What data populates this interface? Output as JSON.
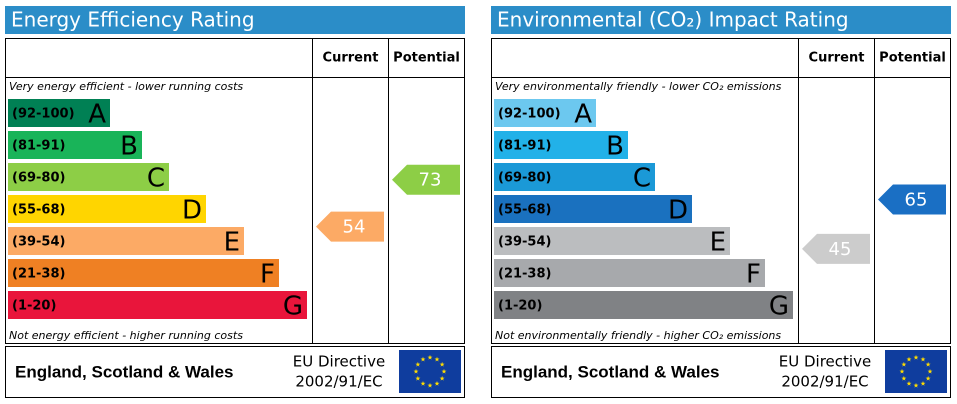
{
  "chart_data": [
    {
      "type": "epc",
      "title": "Energy Efficiency Rating",
      "columns": [
        "Current",
        "Potential"
      ],
      "top_note": "Very energy efficient - lower running costs",
      "bottom_note": "Not energy efficient - higher running costs",
      "bands": [
        {
          "range": "(92-100)",
          "letter": "A",
          "color": "#008054"
        },
        {
          "range": "(81-91)",
          "letter": "B",
          "color": "#19b459"
        },
        {
          "range": "(69-80)",
          "letter": "C",
          "color": "#8dce46"
        },
        {
          "range": "(55-68)",
          "letter": "D",
          "color": "#ffd500"
        },
        {
          "range": "(39-54)",
          "letter": "E",
          "color": "#fcaa65"
        },
        {
          "range": "(21-38)",
          "letter": "F",
          "color": "#ef8023"
        },
        {
          "range": "(1-20)",
          "letter": "G",
          "color": "#e9153b"
        }
      ],
      "current": {
        "value": 54,
        "color": "#fcaa65"
      },
      "potential": {
        "value": 73,
        "color": "#8dce46"
      },
      "footer": {
        "region": "England, Scotland & Wales",
        "directive": [
          "EU Directive",
          "2002/91/EC"
        ]
      }
    },
    {
      "type": "epc",
      "title": "Environmental (CO₂) Impact Rating",
      "columns": [
        "Current",
        "Potential"
      ],
      "top_note": "Very environmentally friendly - lower CO₂ emissions",
      "bottom_note": "Not environmentally friendly - higher CO₂ emissions",
      "bands": [
        {
          "range": "(92-100)",
          "letter": "A",
          "color": "#6cc8ef"
        },
        {
          "range": "(81-91)",
          "letter": "B",
          "color": "#22b1e8"
        },
        {
          "range": "(69-80)",
          "letter": "C",
          "color": "#1b99d7"
        },
        {
          "range": "(55-68)",
          "letter": "D",
          "color": "#1a71bf"
        },
        {
          "range": "(39-54)",
          "letter": "E",
          "color": "#bbbdbf"
        },
        {
          "range": "(21-38)",
          "letter": "F",
          "color": "#a7a9ac"
        },
        {
          "range": "(1-20)",
          "letter": "G",
          "color": "#808285"
        }
      ],
      "current": {
        "value": 45,
        "color": "#cccccc"
      },
      "potential": {
        "value": 65,
        "color": "#1a6fc4"
      },
      "footer": {
        "region": "England, Scotland & Wales",
        "directive": [
          "EU Directive",
          "2002/91/EC"
        ]
      }
    }
  ]
}
